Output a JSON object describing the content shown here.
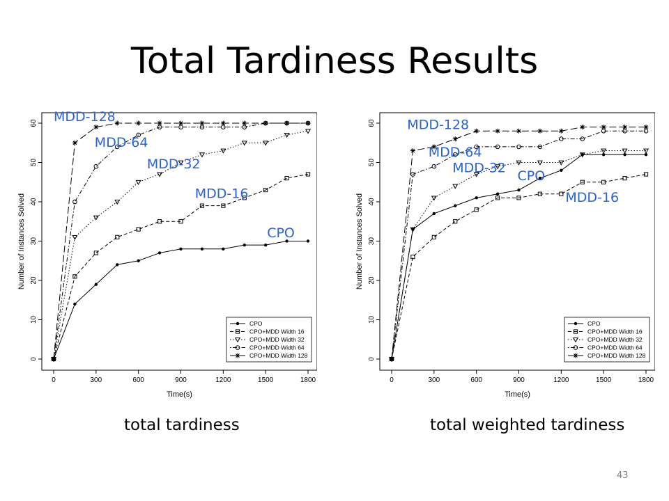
{
  "slide": {
    "title": "Total Tardiness Results",
    "page_number": "43",
    "captions": [
      "total tardiness",
      "total weighted tardiness"
    ]
  },
  "colors": {
    "annotation": "#2a63d4",
    "series": "#000000"
  },
  "chart_data": [
    {
      "type": "line",
      "caption": "total tardiness",
      "xlabel": "Time(s)",
      "ylabel": "Number of Instances Solved",
      "xlim": [
        0,
        1800
      ],
      "ylim": [
        0,
        60
      ],
      "xticks": [
        0,
        300,
        600,
        900,
        1200,
        1500,
        1800
      ],
      "yticks": [
        0,
        10,
        20,
        30,
        40,
        50,
        60
      ],
      "legend_position": "bottom-right",
      "x": [
        0,
        150,
        300,
        450,
        600,
        750,
        900,
        1050,
        1200,
        1350,
        1500,
        1650,
        1800
      ],
      "series": [
        {
          "name": "CPO",
          "marker": "dot",
          "dash": "solid",
          "values": [
            0,
            14,
            19,
            24,
            25,
            27,
            28,
            28,
            28,
            29,
            29,
            30,
            30
          ]
        },
        {
          "name": "CPO+MDD Width 16",
          "marker": "square",
          "dash": "dashed",
          "values": [
            0,
            21,
            27,
            31,
            33,
            35,
            35,
            39,
            39,
            41,
            43,
            46,
            47
          ]
        },
        {
          "name": "CPO+MDD Width 32",
          "marker": "triangle",
          "dash": "dotted",
          "values": [
            0,
            31,
            36,
            40,
            45,
            47,
            50,
            52,
            53,
            55,
            55,
            57,
            58
          ]
        },
        {
          "name": "CPO+MDD Width 64",
          "marker": "circle",
          "dash": "dotdash",
          "values": [
            0,
            40,
            49,
            54,
            57,
            59,
            59,
            59,
            59,
            59,
            60,
            60,
            60
          ]
        },
        {
          "name": "CPO+MDD Width 128",
          "marker": "star",
          "dash": "longdash",
          "values": [
            0,
            55,
            59,
            60,
            60,
            60,
            60,
            60,
            60,
            60,
            60,
            60,
            60
          ]
        }
      ],
      "annotations": [
        {
          "text": "MDD-128",
          "x": 0,
          "y": 60.5
        },
        {
          "text": "MDD-64",
          "x": 290,
          "y": 54
        },
        {
          "text": "MDD-32",
          "x": 660,
          "y": 48.5
        },
        {
          "text": "MDD-16",
          "x": 1000,
          "y": 41
        },
        {
          "text": "CPO",
          "x": 1510,
          "y": 31
        }
      ]
    },
    {
      "type": "line",
      "caption": "total weighted tardiness",
      "xlabel": "Time(s)",
      "ylabel": "Number of Instances Solved",
      "xlim": [
        0,
        1800
      ],
      "ylim": [
        0,
        60
      ],
      "xticks": [
        0,
        300,
        600,
        900,
        1200,
        1500,
        1800
      ],
      "yticks": [
        0,
        10,
        20,
        30,
        40,
        50,
        60
      ],
      "legend_position": "bottom-right",
      "x": [
        0,
        150,
        300,
        450,
        600,
        750,
        900,
        1050,
        1200,
        1350,
        1500,
        1650,
        1800
      ],
      "series": [
        {
          "name": "CPO",
          "marker": "dot",
          "dash": "solid",
          "values": [
            0,
            33,
            37,
            39,
            41,
            42,
            43,
            46,
            48,
            52,
            52,
            52,
            52
          ]
        },
        {
          "name": "CPO+MDD Width 16",
          "marker": "square",
          "dash": "dashed",
          "values": [
            0,
            26,
            31,
            35,
            38,
            41,
            41,
            42,
            42,
            45,
            45,
            46,
            47
          ]
        },
        {
          "name": "CPO+MDD Width 32",
          "marker": "triangle",
          "dash": "dotted",
          "values": [
            0,
            33,
            41,
            44,
            47,
            49,
            50,
            50,
            50,
            52,
            53,
            53,
            53
          ]
        },
        {
          "name": "CPO+MDD Width 64",
          "marker": "circle",
          "dash": "dotdash",
          "values": [
            0,
            47,
            49,
            52,
            54,
            54,
            54,
            54,
            56,
            56,
            58,
            58,
            58
          ]
        },
        {
          "name": "CPO+MDD Width 128",
          "marker": "star",
          "dash": "longdash",
          "values": [
            0,
            53,
            54,
            56,
            58,
            58,
            58,
            58,
            58,
            59,
            59,
            59,
            59
          ]
        }
      ],
      "annotations": [
        {
          "text": "MDD-128",
          "x": 110,
          "y": 58.5
        },
        {
          "text": "MDD-64",
          "x": 260,
          "y": 51.5
        },
        {
          "text": "MDD-32",
          "x": 430,
          "y": 47.5
        },
        {
          "text": "CPO",
          "x": 890,
          "y": 45.5
        },
        {
          "text": "MDD-16",
          "x": 1230,
          "y": 40
        }
      ]
    }
  ]
}
